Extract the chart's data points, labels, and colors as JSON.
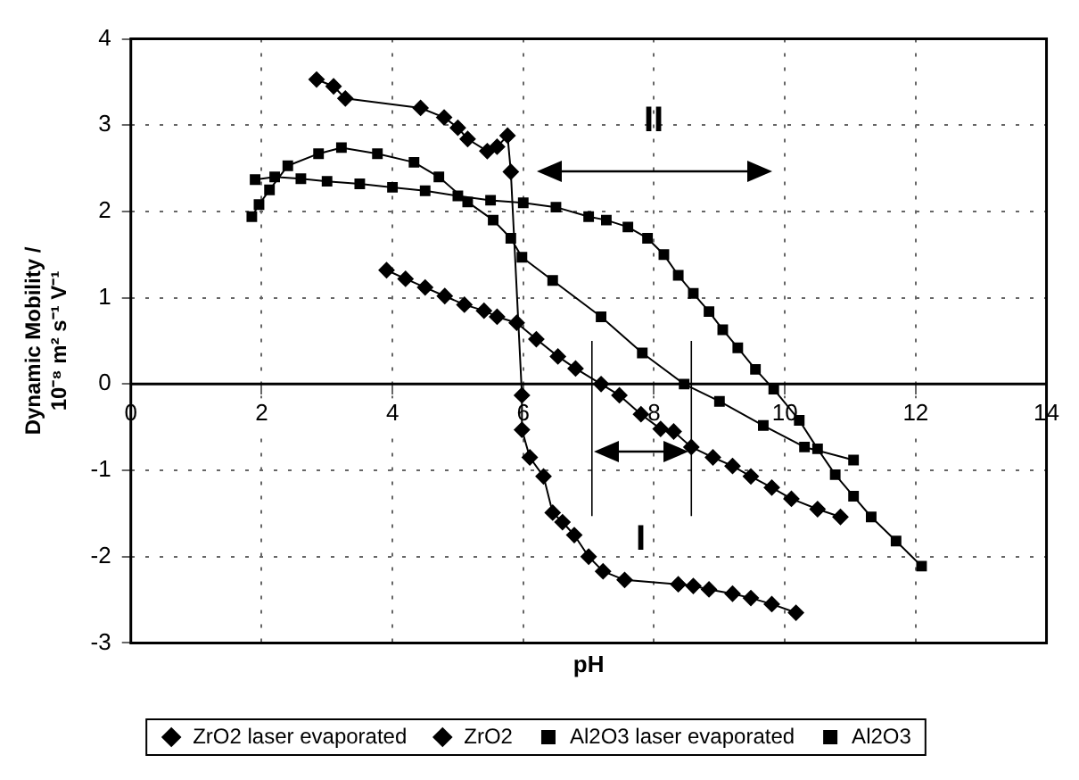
{
  "chart_data": {
    "type": "line",
    "xlabel": "pH",
    "ylabel": "Dynamic Mobility / 10⁻⁸ m² s⁻¹ V⁻¹",
    "xlim": [
      0,
      14
    ],
    "xticks": [
      0,
      2,
      4,
      6,
      8,
      10,
      12,
      14
    ],
    "ylim": [
      -3,
      4
    ],
    "yticks": [
      -3,
      -2,
      -1,
      0,
      1,
      2,
      3,
      4
    ],
    "grid": true,
    "legend": "bottom",
    "line_style": "solid",
    "series": [
      {
        "name": "ZrO2 laser evaporated",
        "color": "#000000",
        "marker": "diamond",
        "x": [
          2.84,
          3.1,
          3.28,
          4.43,
          4.79,
          5.0,
          5.15,
          5.45,
          5.6,
          5.76,
          5.81,
          5.98,
          5.98,
          6.1,
          6.31,
          6.45,
          6.6,
          6.78,
          7.0,
          7.22,
          7.55,
          8.37,
          8.6,
          8.84,
          9.2,
          9.48,
          9.8,
          10.17
        ],
        "values": [
          3.53,
          3.45,
          3.31,
          3.2,
          3.09,
          2.97,
          2.84,
          2.7,
          2.75,
          2.88,
          2.46,
          -0.13,
          -0.53,
          -0.85,
          -1.07,
          -1.49,
          -1.6,
          -1.75,
          -2.0,
          -2.17,
          -2.27,
          -2.32,
          -2.34,
          -2.38,
          -2.43,
          -2.48,
          -2.55,
          -2.65
        ]
      },
      {
        "name": "ZrO2",
        "color": "#000000",
        "marker": "diamond",
        "x": [
          3.91,
          4.2,
          4.5,
          4.8,
          5.1,
          5.4,
          5.6,
          5.9,
          6.2,
          6.53,
          6.8,
          7.19,
          7.47,
          7.8,
          8.1,
          8.3,
          8.57,
          8.9,
          9.2,
          9.48,
          9.8,
          10.1,
          10.5,
          10.85
        ],
        "values": [
          1.32,
          1.22,
          1.12,
          1.02,
          0.92,
          0.85,
          0.78,
          0.71,
          0.52,
          0.32,
          0.18,
          0.0,
          -0.13,
          -0.35,
          -0.52,
          -0.55,
          -0.73,
          -0.85,
          -0.95,
          -1.07,
          -1.2,
          -1.33,
          -1.45,
          -1.54
        ]
      },
      {
        "name": "Al2O3 laser evaporated",
        "color": "#000000",
        "marker": "square",
        "x": [
          1.9,
          2.2,
          2.6,
          3.0,
          3.5,
          4.0,
          4.5,
          5.0,
          5.5,
          6.0,
          6.5,
          7.0,
          7.27,
          7.6,
          7.9,
          8.15,
          8.37,
          8.6,
          8.84,
          9.05,
          9.28,
          9.55,
          9.83,
          10.22,
          10.5,
          10.77,
          11.05,
          11.32,
          11.7,
          12.09
        ],
        "values": [
          2.37,
          2.4,
          2.38,
          2.35,
          2.32,
          2.28,
          2.24,
          2.18,
          2.13,
          2.1,
          2.05,
          1.94,
          1.9,
          1.82,
          1.69,
          1.5,
          1.26,
          1.05,
          0.84,
          0.63,
          0.42,
          0.17,
          -0.06,
          -0.42,
          -0.75,
          -1.05,
          -1.3,
          -1.54,
          -1.82,
          -2.11
        ]
      },
      {
        "name": "Al2O3",
        "color": "#000000",
        "marker": "square",
        "x": [
          1.85,
          1.96,
          2.12,
          2.4,
          2.87,
          3.22,
          3.77,
          4.33,
          4.71,
          5.15,
          5.54,
          5.81,
          5.98,
          6.45,
          7.19,
          7.82,
          8.46,
          9.0,
          9.67,
          10.3,
          11.05
        ],
        "values": [
          1.94,
          2.08,
          2.25,
          2.53,
          2.67,
          2.74,
          2.67,
          2.57,
          2.4,
          2.11,
          1.9,
          1.69,
          1.47,
          1.2,
          0.78,
          0.36,
          0.0,
          -0.2,
          -0.48,
          -0.73,
          -0.88
        ]
      }
    ],
    "annotations": [
      "I",
      "II"
    ],
    "ref_lines": [
      {
        "axis": "x",
        "value": 7.05
      },
      {
        "axis": "x",
        "value": 8.57
      }
    ]
  }
}
